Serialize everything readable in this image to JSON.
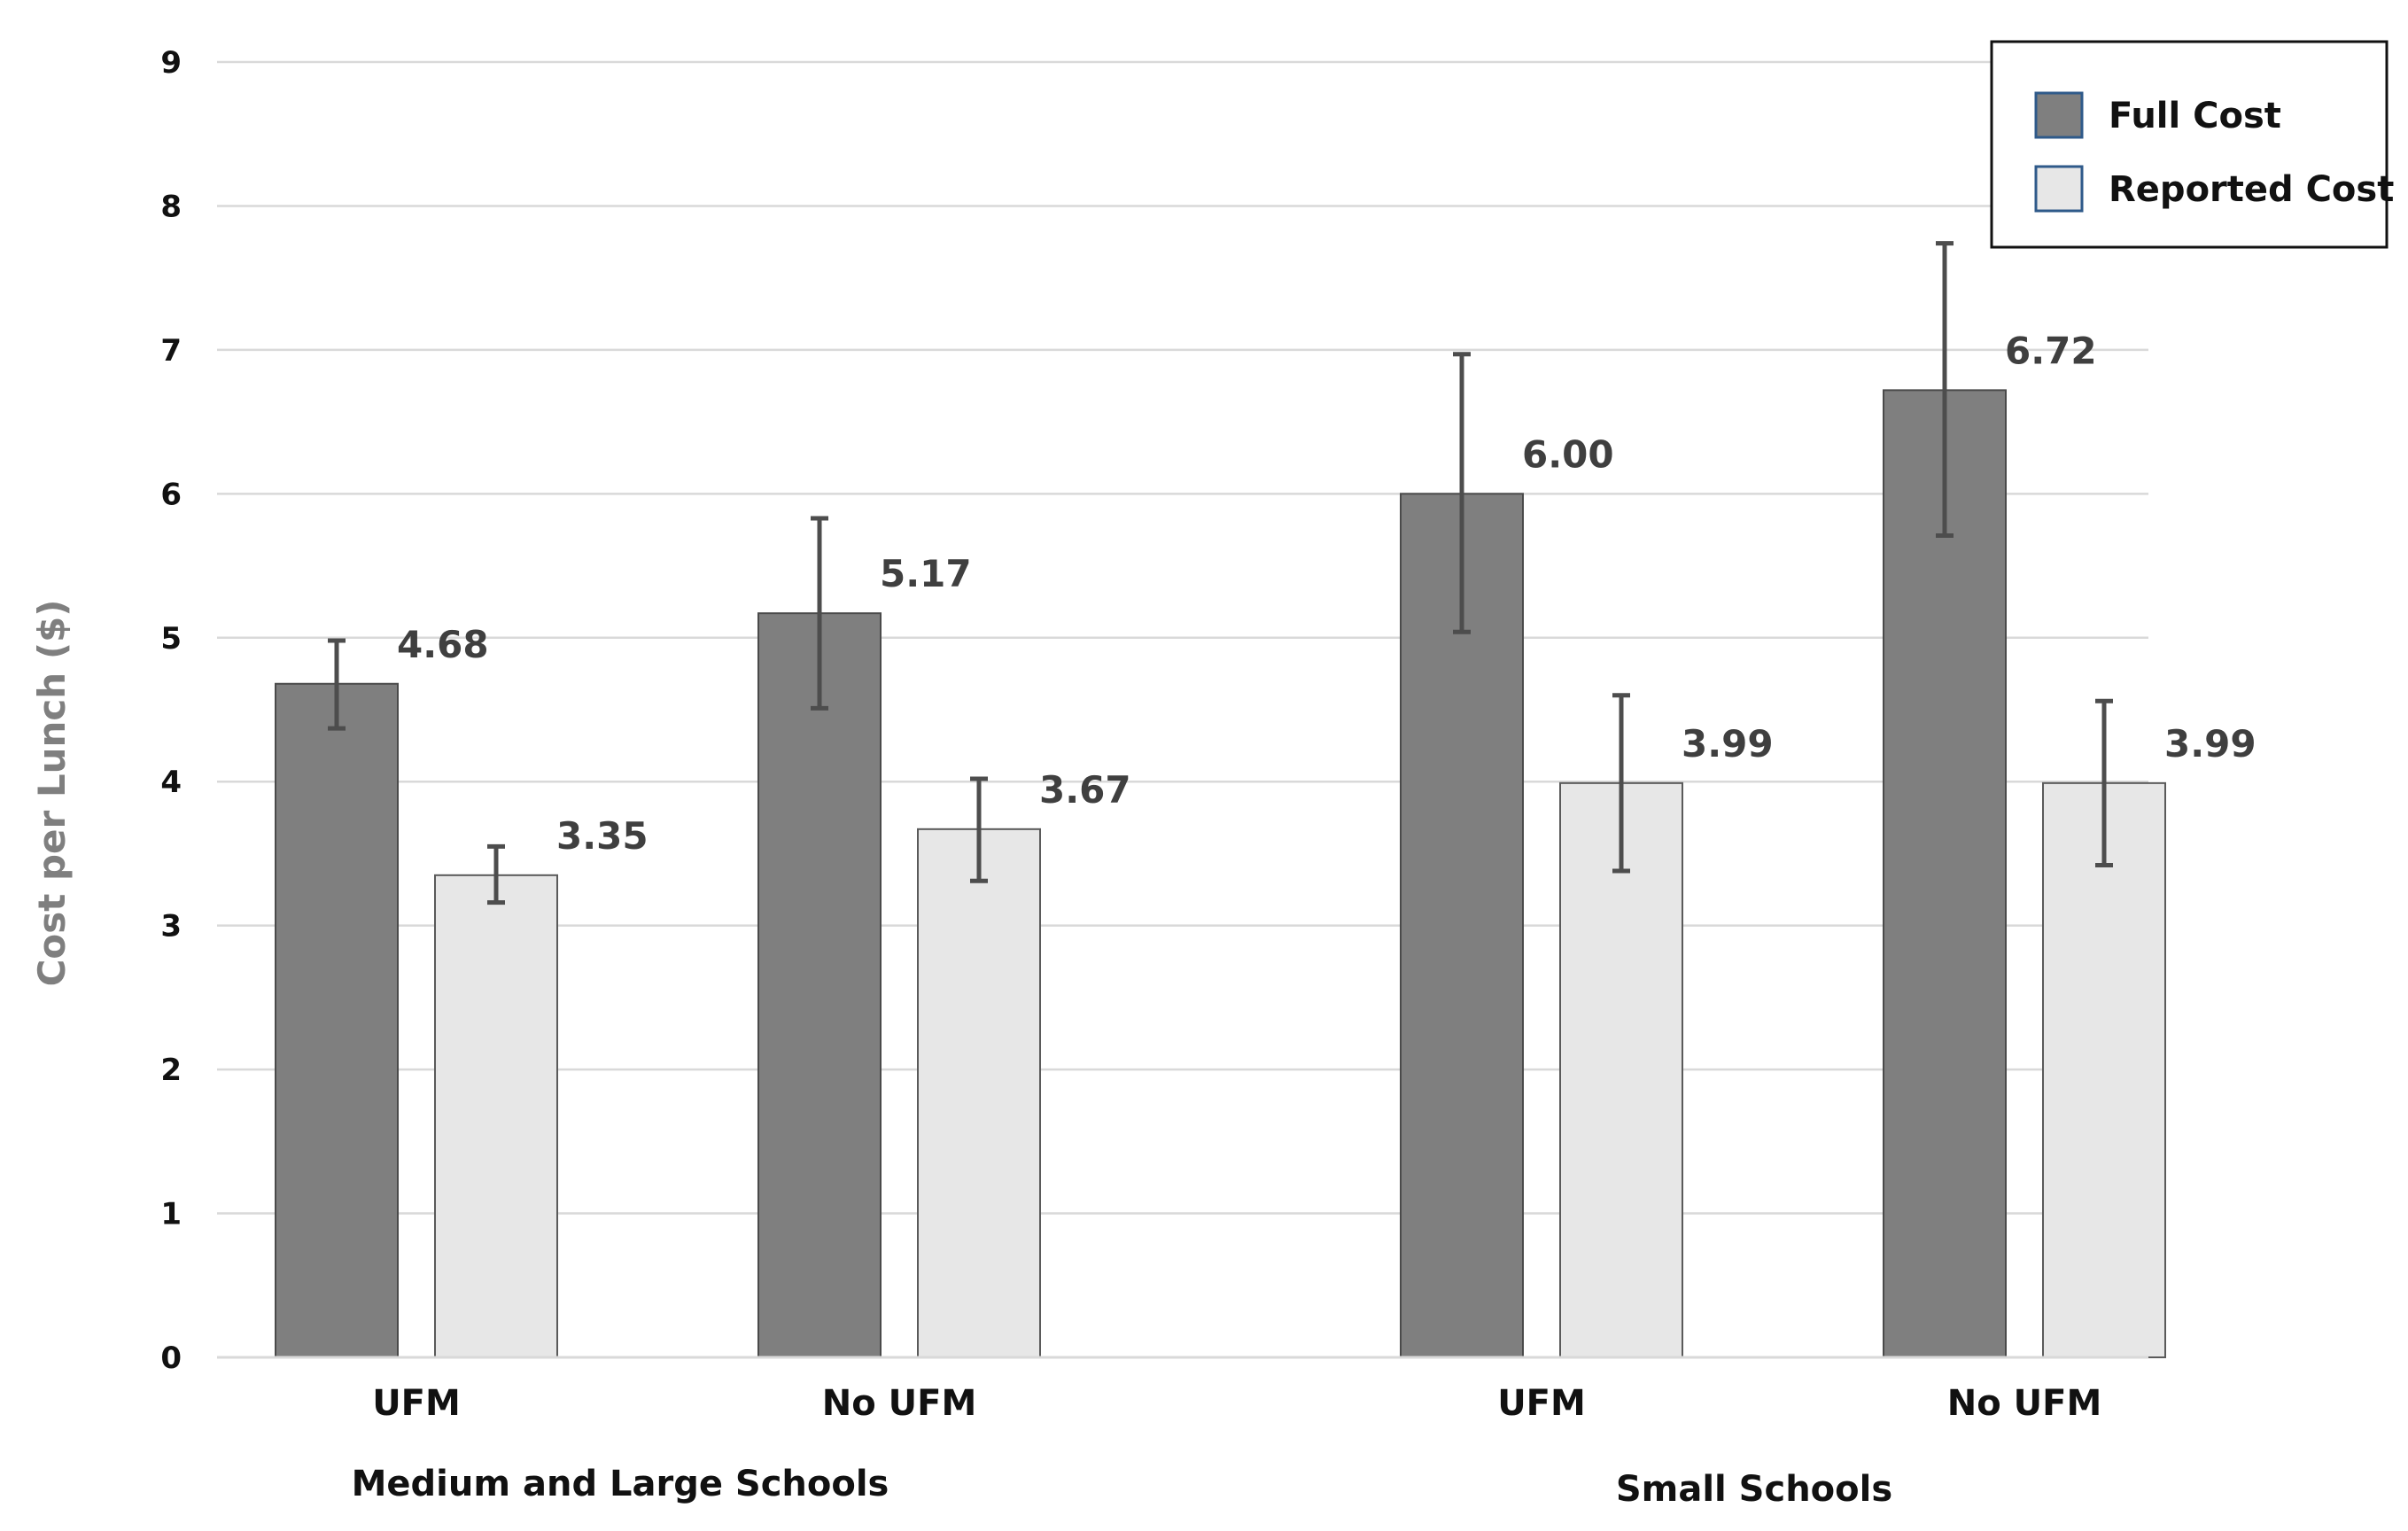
{
  "chart_data": {
    "type": "bar",
    "title": "",
    "xlabel": "",
    "ylabel": "Cost per Lunch ($)",
    "ylim": [
      0,
      9
    ],
    "yticks": [
      "0",
      "1",
      "2",
      "3",
      "4",
      "5",
      "6",
      "7",
      "8",
      "9"
    ],
    "grid": true,
    "legend_position": "top-right",
    "groups": [
      {
        "label": "Medium and Large Schools",
        "categories": [
          "UFM",
          "No UFM"
        ]
      },
      {
        "label": "Small Schools",
        "categories": [
          "UFM",
          "No UFM"
        ]
      }
    ],
    "categories": [
      "UFM",
      "No UFM",
      "UFM",
      "No UFM"
    ],
    "series": [
      {
        "name": "Full Cost",
        "color": "#7f7f7f",
        "values": [
          4.68,
          5.17,
          6.0,
          6.72
        ],
        "labels": [
          "4.68",
          "5.17",
          "6.00",
          "6.72"
        ],
        "error_low": [
          4.37,
          4.51,
          5.04,
          5.71
        ],
        "error_high": [
          4.98,
          5.83,
          6.97,
          7.74
        ]
      },
      {
        "name": "Reported Cost",
        "color": "#e7e7e7",
        "values": [
          3.35,
          3.67,
          3.99,
          3.99
        ],
        "labels": [
          "3.35",
          "3.67",
          "3.99",
          "3.99"
        ],
        "error_low": [
          3.16,
          3.31,
          3.38,
          3.42
        ],
        "error_high": [
          3.55,
          4.02,
          4.6,
          4.56
        ]
      }
    ]
  }
}
